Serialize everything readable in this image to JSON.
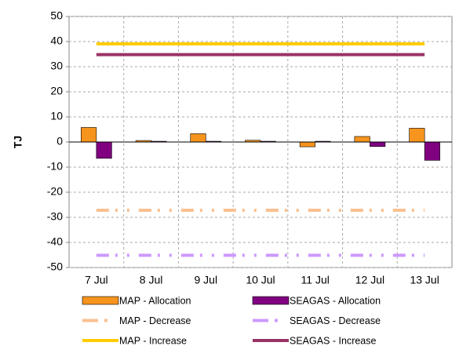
{
  "chart_data": {
    "type": "bar",
    "y_label": "TJ",
    "categories": [
      "7 Jul",
      "8 Jul",
      "9 Jul",
      "10 Jul",
      "11 Jul",
      "12 Jul",
      "13 Jul"
    ],
    "ylim": [
      -50,
      50
    ],
    "yticks": [
      -50,
      -40,
      -30,
      -20,
      -10,
      0,
      10,
      20,
      30,
      40,
      50
    ],
    "grid": true,
    "series": [
      {
        "name": "MAP - Allocation",
        "type": "bar",
        "color": "#f7941d",
        "values": [
          5.8,
          0.6,
          3.3,
          0.7,
          -1.9,
          2.2,
          5.5
        ]
      },
      {
        "name": "SEAGAS - Allocation",
        "type": "bar",
        "color": "#800080",
        "values": [
          -6.5,
          0.3,
          0.3,
          0.3,
          0.3,
          -1.8,
          -7.3
        ]
      },
      {
        "name": "MAP - Decrease",
        "type": "line",
        "dashed": true,
        "color": "#fac090",
        "values": [
          -27.2,
          -27.2,
          -27.2,
          -27.2,
          -27.2,
          -27.2,
          -27.2
        ]
      },
      {
        "name": "SEAGAS - Decrease",
        "type": "line",
        "dashed": true,
        "color": "#cc99ff",
        "values": [
          -45.1,
          -45.1,
          -45.1,
          -45.1,
          -45.1,
          -45.1,
          -45.1
        ]
      },
      {
        "name": "MAP - Increase",
        "type": "line",
        "dashed": false,
        "color": "#ffcc00",
        "values": [
          39.1,
          39.1,
          39.1,
          39.1,
          39.1,
          39.1,
          39.1
        ]
      },
      {
        "name": "SEAGAS - Increase",
        "type": "line",
        "dashed": false,
        "color": "#993366",
        "values": [
          34.8,
          34.8,
          34.8,
          34.8,
          34.8,
          34.8,
          34.8
        ]
      }
    ]
  }
}
